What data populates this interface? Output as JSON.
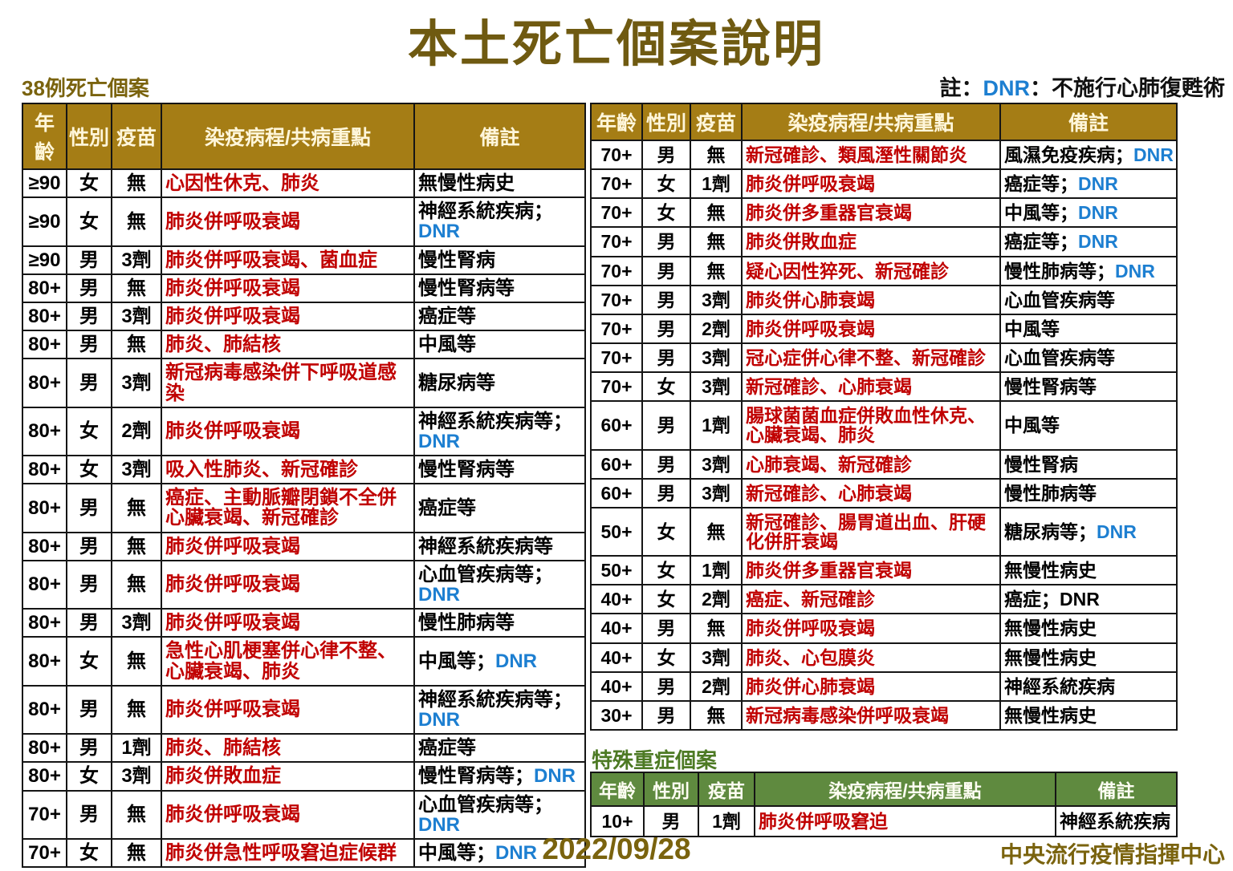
{
  "page": {
    "title": "本土死亡個案說明",
    "footer": {
      "date": "2022/09/28",
      "agency": "中央流行疫情指揮中心"
    }
  },
  "note": {
    "prefix": "註：",
    "dnr": "DNR",
    "suffix": "：不施行心肺復甦術"
  },
  "colors": {
    "title_olive": "#6F5A11",
    "section_label_gold": "#7A630E",
    "table_header_gold": "#A57D15",
    "course_red": "#C00000",
    "dnr_blue": "#1D7FD1",
    "special_label_green": "#4D7A24",
    "table_header_green": "#5F8A3F"
  },
  "death_table": {
    "label": "38例死亡個案",
    "headers": [
      "年齡",
      "性別",
      "疫苗",
      "染疫病程/共病重點",
      "備註"
    ],
    "left_rows": [
      {
        "age": "≥90",
        "sex": "女",
        "vaccine": "無",
        "course": "心因性休克、肺炎",
        "remark": "無慢性病史"
      },
      {
        "age": "≥90",
        "sex": "女",
        "vaccine": "無",
        "course": "肺炎併呼吸衰竭",
        "remark": "神經系統疾病；DNR"
      },
      {
        "age": "≥90",
        "sex": "男",
        "vaccine": "3劑",
        "course": "肺炎併呼吸衰竭、菌血症",
        "remark": "慢性腎病"
      },
      {
        "age": "80+",
        "sex": "男",
        "vaccine": "無",
        "course": "肺炎併呼吸衰竭",
        "remark": "慢性腎病等"
      },
      {
        "age": "80+",
        "sex": "男",
        "vaccine": "3劑",
        "course": "肺炎併呼吸衰竭",
        "remark": "癌症等"
      },
      {
        "age": "80+",
        "sex": "男",
        "vaccine": "無",
        "course": "肺炎、肺結核",
        "remark": "中風等"
      },
      {
        "age": "80+",
        "sex": "男",
        "vaccine": "3劑",
        "course": "新冠病毒感染併下呼吸道感染",
        "remark": "糖尿病等"
      },
      {
        "age": "80+",
        "sex": "女",
        "vaccine": "2劑",
        "course": "肺炎併呼吸衰竭",
        "remark": "神經系統疾病等；DNR"
      },
      {
        "age": "80+",
        "sex": "女",
        "vaccine": "3劑",
        "course": "吸入性肺炎、新冠確診",
        "remark": "慢性腎病等"
      },
      {
        "age": "80+",
        "sex": "男",
        "vaccine": "無",
        "course": "癌症、主動脈瓣閉鎖不全併心臟衰竭、新冠確診",
        "remark": "癌症等"
      },
      {
        "age": "80+",
        "sex": "男",
        "vaccine": "無",
        "course": "肺炎併呼吸衰竭",
        "remark": "神經系統疾病等"
      },
      {
        "age": "80+",
        "sex": "男",
        "vaccine": "無",
        "course": "肺炎併呼吸衰竭",
        "remark": "心血管疾病等；DNR"
      },
      {
        "age": "80+",
        "sex": "男",
        "vaccine": "3劑",
        "course": "肺炎併呼吸衰竭",
        "remark": "慢性肺病等"
      },
      {
        "age": "80+",
        "sex": "女",
        "vaccine": "無",
        "course": "急性心肌梗塞併心律不整、心臟衰竭、肺炎",
        "remark": "中風等；DNR"
      },
      {
        "age": "80+",
        "sex": "男",
        "vaccine": "無",
        "course": "肺炎併呼吸衰竭",
        "remark": "神經系統疾病等；DNR"
      },
      {
        "age": "80+",
        "sex": "男",
        "vaccine": "1劑",
        "course": "肺炎、肺結核",
        "remark": "癌症等"
      },
      {
        "age": "80+",
        "sex": "女",
        "vaccine": "3劑",
        "course": "肺炎併敗血症",
        "remark": "慢性腎病等；DNR"
      },
      {
        "age": "70+",
        "sex": "男",
        "vaccine": "無",
        "course": "肺炎併呼吸衰竭",
        "remark": "心血管疾病等；DNR"
      },
      {
        "age": "70+",
        "sex": "女",
        "vaccine": "無",
        "course": "肺炎併急性呼吸窘迫症候群",
        "remark": "中風等；DNR"
      }
    ],
    "right_rows": [
      {
        "age": "70+",
        "sex": "男",
        "vaccine": "無",
        "course": "新冠確診、類風溼性關節炎",
        "remark": "風濕免疫疾病；DNR"
      },
      {
        "age": "70+",
        "sex": "女",
        "vaccine": "1劑",
        "course": "肺炎併呼吸衰竭",
        "remark": "癌症等；DNR"
      },
      {
        "age": "70+",
        "sex": "女",
        "vaccine": "無",
        "course": "肺炎併多重器官衰竭",
        "remark": "中風等；DNR"
      },
      {
        "age": "70+",
        "sex": "男",
        "vaccine": "無",
        "course": "肺炎併敗血症",
        "remark": "癌症等；DNR"
      },
      {
        "age": "70+",
        "sex": "男",
        "vaccine": "無",
        "course": "疑心因性猝死、新冠確診",
        "remark": "慢性肺病等；DNR"
      },
      {
        "age": "70+",
        "sex": "男",
        "vaccine": "3劑",
        "course": "肺炎併心肺衰竭",
        "remark": "心血管疾病等"
      },
      {
        "age": "70+",
        "sex": "男",
        "vaccine": "2劑",
        "course": "肺炎併呼吸衰竭",
        "remark": "中風等"
      },
      {
        "age": "70+",
        "sex": "男",
        "vaccine": "3劑",
        "course": "冠心症併心律不整、新冠確診",
        "remark": "心血管疾病等"
      },
      {
        "age": "70+",
        "sex": "女",
        "vaccine": "3劑",
        "course": "新冠確診、心肺衰竭",
        "remark": "慢性腎病等"
      },
      {
        "age": "60+",
        "sex": "男",
        "vaccine": "1劑",
        "course": "腸球菌菌血症併敗血性休克、心臟衰竭、肺炎",
        "remark": "中風等"
      },
      {
        "age": "60+",
        "sex": "男",
        "vaccine": "3劑",
        "course": "心肺衰竭、新冠確診",
        "remark": "慢性腎病"
      },
      {
        "age": "60+",
        "sex": "男",
        "vaccine": "3劑",
        "course": "新冠確診、心肺衰竭",
        "remark": "慢性肺病等"
      },
      {
        "age": "50+",
        "sex": "女",
        "vaccine": "無",
        "course": "新冠確診、腸胃道出血、肝硬化併肝衰竭",
        "remark": "糖尿病等；DNR"
      },
      {
        "age": "50+",
        "sex": "女",
        "vaccine": "1劑",
        "course": "肺炎併多重器官衰竭",
        "remark": "無慢性病史"
      },
      {
        "age": "40+",
        "sex": "女",
        "vaccine": "2劑",
        "course": "癌症、新冠確診",
        "remark": "癌症；DNR",
        "dnr_black": true
      },
      {
        "age": "40+",
        "sex": "男",
        "vaccine": "無",
        "course": "肺炎併呼吸衰竭",
        "remark": "無慢性病史"
      },
      {
        "age": "40+",
        "sex": "女",
        "vaccine": "3劑",
        "course": "肺炎、心包膜炎",
        "remark": "無慢性病史"
      },
      {
        "age": "40+",
        "sex": "男",
        "vaccine": "2劑",
        "course": "肺炎併心肺衰竭",
        "remark": "神經系統疾病"
      },
      {
        "age": "30+",
        "sex": "男",
        "vaccine": "無",
        "course": "新冠病毒感染併呼吸衰竭",
        "remark": "無慢性病史"
      }
    ]
  },
  "special_table": {
    "label": "特殊重症個案",
    "headers": [
      "年齡",
      "性別",
      "疫苗",
      "染疫病程/共病重點",
      "備註"
    ],
    "rows": [
      {
        "age": "10+",
        "sex": "男",
        "vaccine": "1劑",
        "course": "肺炎併呼吸窘迫",
        "remark": "神經系統疾病"
      }
    ]
  }
}
